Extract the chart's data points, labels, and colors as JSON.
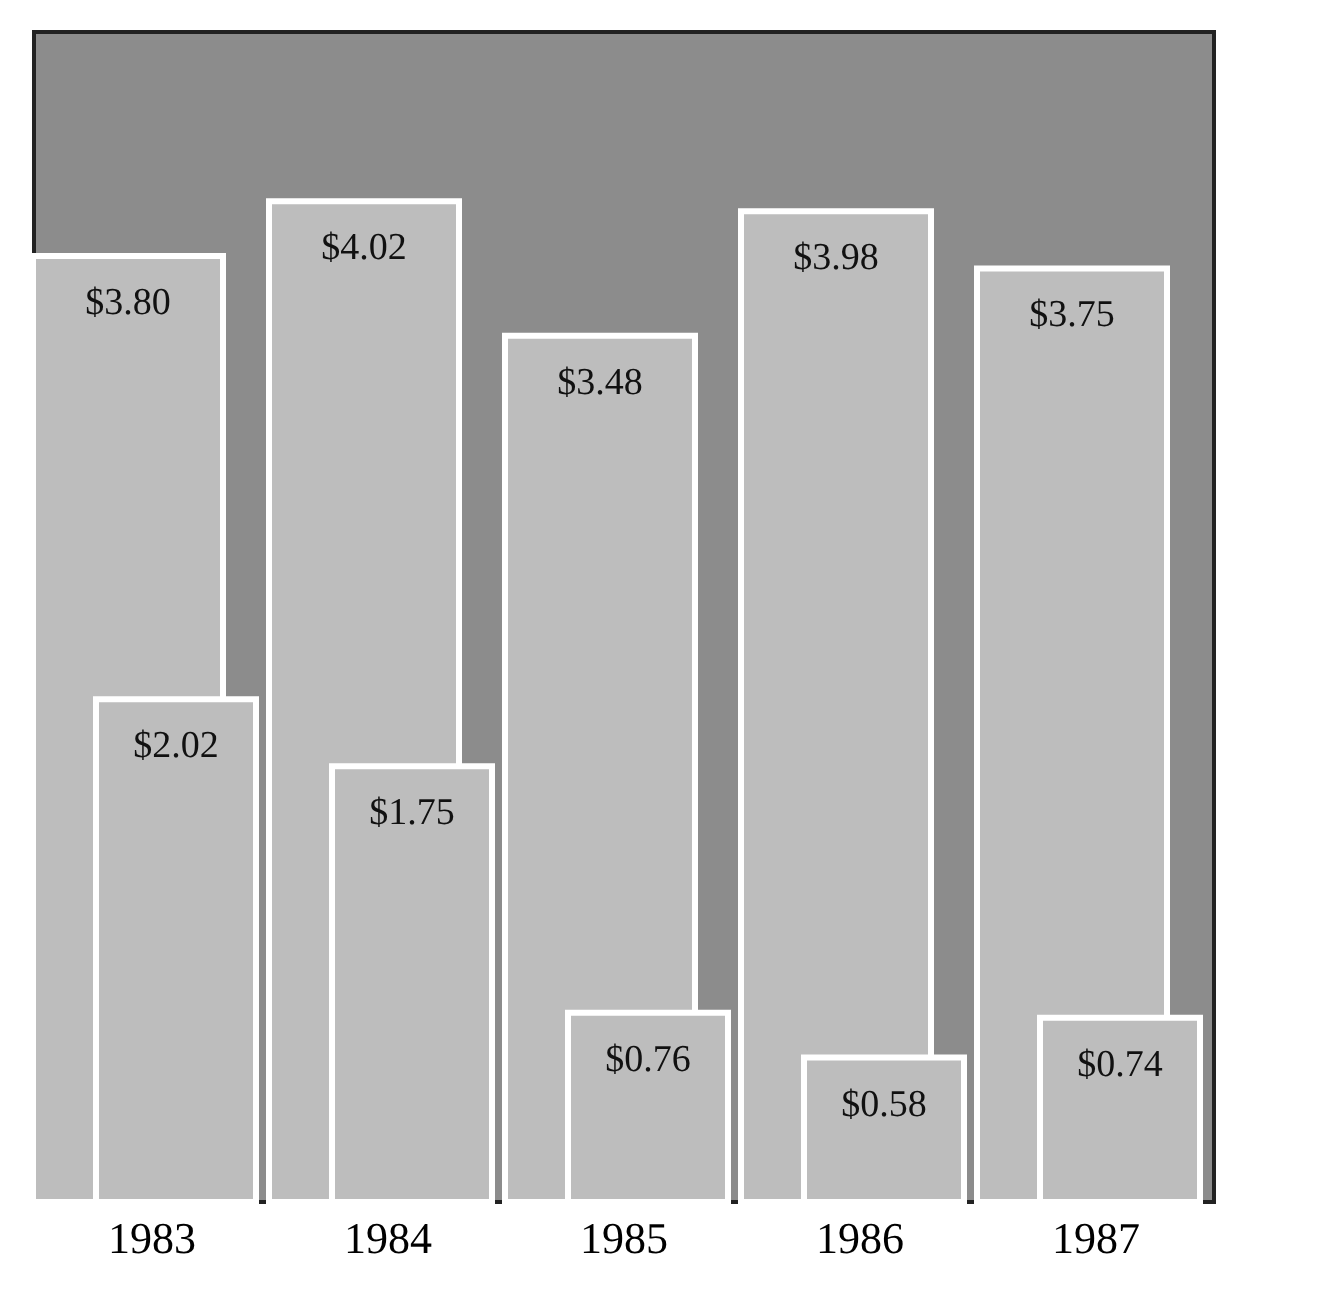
{
  "chart_data": {
    "type": "bar",
    "categories": [
      "1983",
      "1984",
      "1985",
      "1986",
      "1987"
    ],
    "ylim": [
      0,
      4.7
    ],
    "series": [
      {
        "color": "#bdbdbd",
        "values": [
          3.8,
          4.02,
          3.48,
          3.98,
          3.75
        ],
        "value_labels": [
          "$3.80",
          "$4.02",
          "$3.48",
          "$3.98",
          "$3.75"
        ]
      },
      {
        "color": "#bdbdbd",
        "values": [
          2.02,
          1.75,
          0.76,
          0.58,
          0.74
        ],
        "value_labels": [
          "$2.02",
          "$1.75",
          "$0.76",
          "$0.58",
          "$0.74"
        ]
      }
    ]
  }
}
